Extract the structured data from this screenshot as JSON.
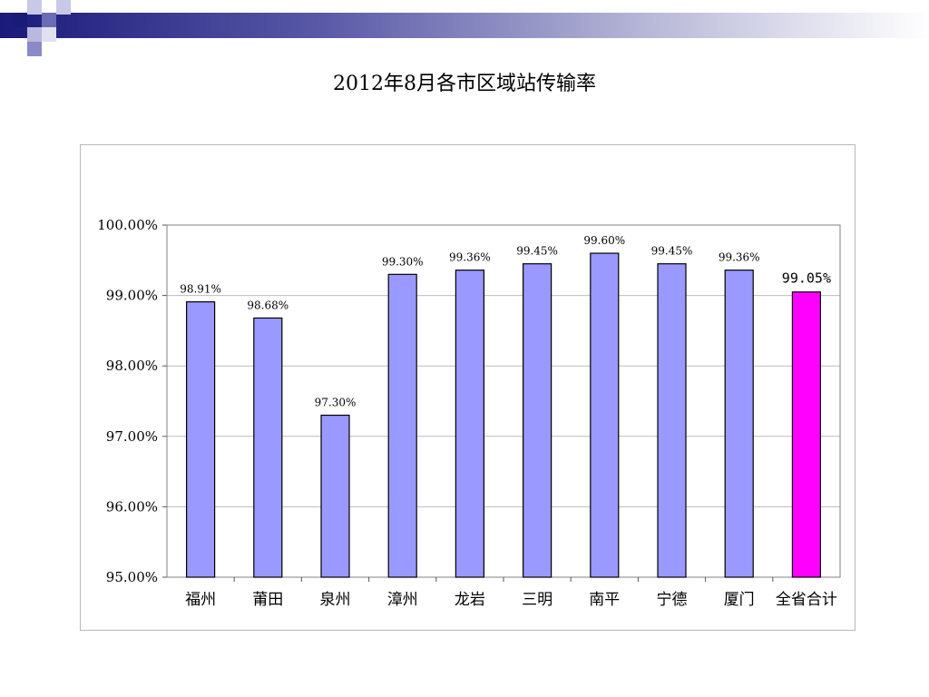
{
  "slide": {
    "title": "2012年8月各市区域站传输率",
    "accent_colors": {
      "dark": "#1a1a7a",
      "mid": "#6b6bb8",
      "light": "#b8b8e0"
    }
  },
  "chart_data": {
    "type": "bar",
    "title": "2012年8月各市区域站传输率",
    "xlabel": "",
    "ylabel": "",
    "categories": [
      "福州",
      "莆田",
      "泉州",
      "漳州",
      "龙岩",
      "三明",
      "南平",
      "宁德",
      "厦门",
      "全省合计"
    ],
    "values": [
      98.91,
      98.68,
      97.3,
      99.3,
      99.36,
      99.45,
      99.6,
      99.45,
      99.36,
      99.05
    ],
    "labels": [
      "98.91%",
      "98.68%",
      "97.30%",
      "99.30%",
      "99.36%",
      "99.45%",
      "99.60%",
      "99.45%",
      "99.36%",
      "99.05%"
    ],
    "ylim": [
      95,
      100
    ],
    "yticks": [
      95,
      96,
      97,
      98,
      99,
      100
    ],
    "ytick_labels": [
      "95.00%",
      "96.00%",
      "97.00%",
      "98.00%",
      "99.00%",
      "100.00%"
    ],
    "grid": true,
    "legend": "none",
    "bar_color": "#9999ff",
    "highlight_color": "#ff00ff",
    "highlight_index": 9
  }
}
